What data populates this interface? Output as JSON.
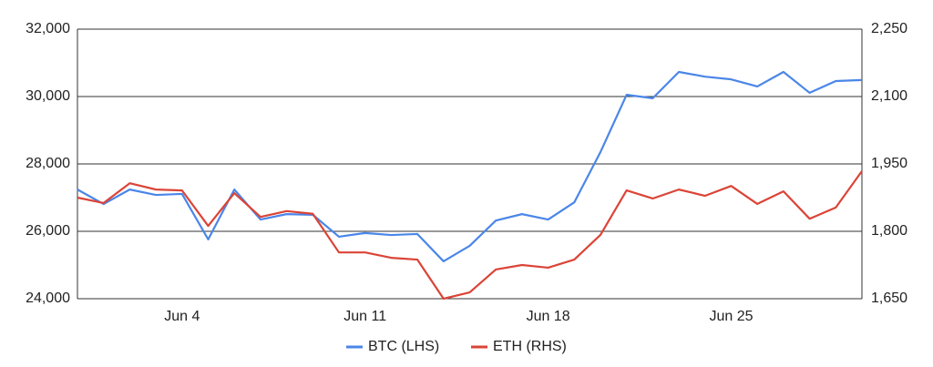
{
  "chart_data": {
    "type": "line",
    "categories": [
      null,
      null,
      null,
      null,
      "Jun 4",
      null,
      null,
      null,
      null,
      null,
      null,
      "Jun 11",
      null,
      null,
      null,
      null,
      null,
      null,
      "Jun 18",
      null,
      null,
      null,
      null,
      null,
      null,
      "Jun 25",
      null,
      null,
      null,
      null,
      null
    ],
    "series": [
      {
        "name": "BTC (LHS)",
        "color": "#4a86e8",
        "axis": "y",
        "values": [
          27240,
          26810,
          27240,
          27080,
          27110,
          25760,
          27240,
          26350,
          26510,
          26490,
          25840,
          25950,
          25890,
          25920,
          25110,
          25570,
          26320,
          26510,
          26350,
          26860,
          28350,
          30050,
          29950,
          30730,
          30590,
          30510,
          30300,
          30730,
          30110,
          30460,
          30490
        ]
      },
      {
        "name": "ETH (RHS)",
        "color": "#db4437",
        "axis": "y2",
        "values": [
          1875,
          1863,
          1907,
          1893,
          1891,
          1812,
          1885,
          1832,
          1845,
          1839,
          1753,
          1753,
          1741,
          1737,
          1650,
          1664,
          1715,
          1725,
          1719,
          1737,
          1792,
          1891,
          1873,
          1893,
          1879,
          1901,
          1861,
          1889,
          1828,
          1853,
          1934
        ]
      }
    ],
    "ylim": [
      24000,
      32000
    ],
    "yticks": [
      {
        "value": 24000,
        "label": "24,000"
      },
      {
        "value": 26000,
        "label": "26,000"
      },
      {
        "value": 28000,
        "label": "28,000"
      },
      {
        "value": 30000,
        "label": "30,000"
      },
      {
        "value": 32000,
        "label": "32,000"
      }
    ],
    "y2lim": [
      1650,
      2250
    ],
    "y2ticks": [
      {
        "value": 1650,
        "label": "1,650"
      },
      {
        "value": 1800,
        "label": "1,800"
      },
      {
        "value": 1950,
        "label": "1,950"
      },
      {
        "value": 2100,
        "label": "2,100"
      },
      {
        "value": 2250,
        "label": "2,250"
      }
    ],
    "grid": true,
    "legend": "bottom"
  }
}
